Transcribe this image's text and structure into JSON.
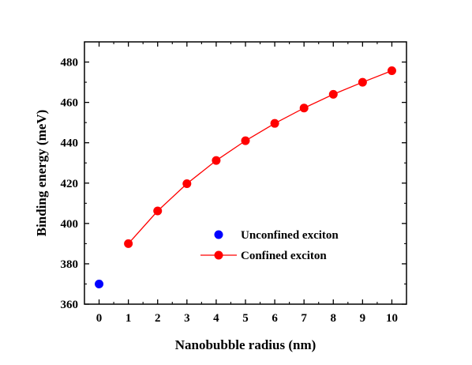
{
  "chart_data": {
    "type": "scatter",
    "title": "",
    "xlabel": "Nanobubble radius (nm)",
    "ylabel": "Binding energy (meV)",
    "xlim": [
      -0.5,
      10.5
    ],
    "ylim": [
      360,
      490
    ],
    "xticks": [
      0,
      1,
      2,
      3,
      4,
      5,
      6,
      7,
      8,
      9,
      10
    ],
    "yticks": [
      360,
      380,
      400,
      420,
      440,
      460,
      480
    ],
    "xtick_labels": [
      "0",
      "1",
      "2",
      "3",
      "4",
      "5",
      "6",
      "7",
      "8",
      "9",
      "10"
    ],
    "ytick_labels": [
      "360",
      "380",
      "400",
      "420",
      "440",
      "460",
      "480"
    ],
    "grid": false,
    "legend_position": "center-right",
    "series": [
      {
        "name": "Unconfined exciton",
        "style": "marker",
        "color": "#0000ff",
        "x": [
          0
        ],
        "y": [
          370
        ]
      },
      {
        "name": "Confined exciton",
        "style": "line+marker",
        "color": "#ff0000",
        "x": [
          1,
          2,
          3,
          4,
          5,
          6,
          7,
          8,
          9,
          10
        ],
        "y": [
          390,
          406.2,
          419.7,
          431.2,
          441,
          449.6,
          457.2,
          464,
          470,
          475.7
        ]
      }
    ]
  }
}
